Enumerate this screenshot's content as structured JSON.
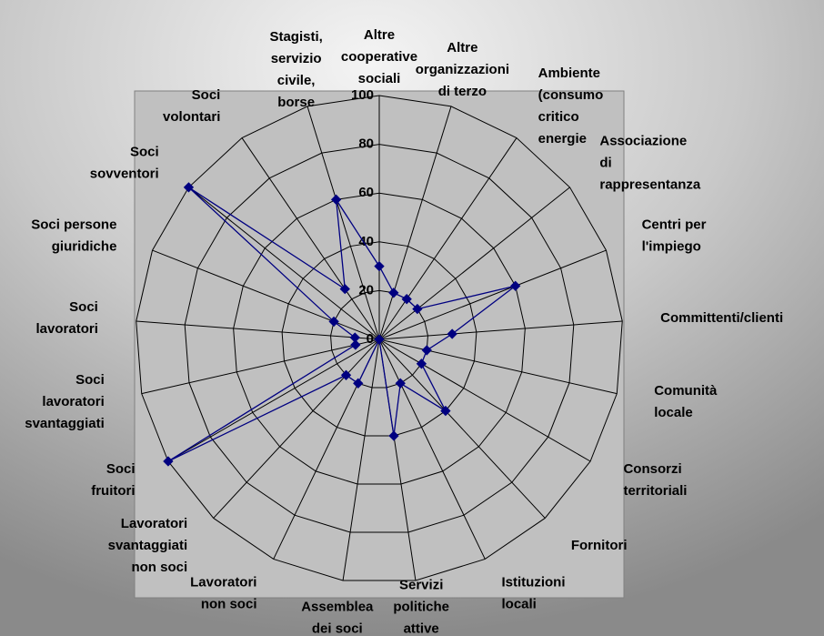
{
  "chart_data": {
    "type": "radar",
    "categories": [
      "Altre cooperative sociali",
      "Altre organizzazioni di terzo",
      "Ambiente (consumo critico energie",
      "Associazione di rappresentanza",
      "Centri per l'impiego",
      "Committenti/clienti",
      "Comunità locale",
      "Consorzi territoriali",
      "Fornitori",
      "Istituzioni locali",
      "Servizi politiche attive lavoro",
      "Assemblea dei soci",
      "Lavoratori non soci",
      "Lavoratori svantaggiati non soci",
      "Soci fruitori",
      "Soci lavoratori svantaggiati",
      "Soci lavoratori",
      "Soci persone giuridiche",
      "Soci sovventori",
      "Soci volontari",
      "Stagisti, servizio civile, borse"
    ],
    "series": [
      {
        "color": "#000080",
        "values": [
          30,
          20,
          20,
          20,
          60,
          30,
          20,
          20,
          40,
          20,
          40,
          0,
          20,
          20,
          100,
          10,
          10,
          20,
          100,
          25,
          60
        ]
      }
    ],
    "ylim": [
      0,
      100
    ],
    "yticks": [
      0,
      20,
      40,
      60,
      80,
      100
    ],
    "grid": true
  }
}
